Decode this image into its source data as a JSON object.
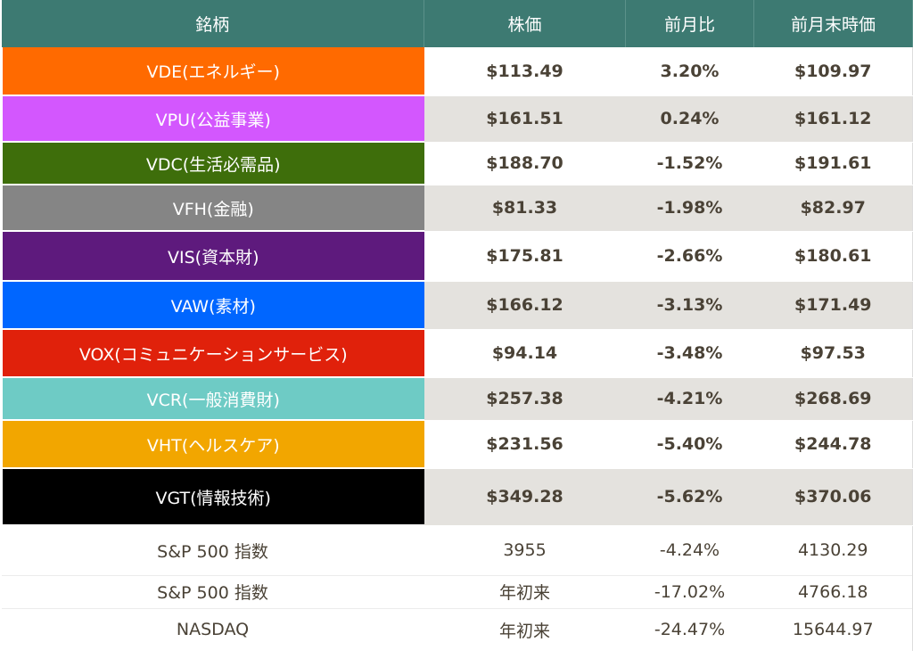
{
  "table": {
    "headers": [
      "銘柄",
      "株価",
      "前月比",
      "前月末時価"
    ],
    "rows": [
      {
        "name": "VDE(エネルギー)",
        "price": "$113.49",
        "change": "3.20%",
        "prev": "$109.97",
        "color": "#ff6a00"
      },
      {
        "name": "VPU(公益事業)",
        "price": "$161.51",
        "change": "0.24%",
        "prev": "$161.12",
        "color": "#d357fe"
      },
      {
        "name": "VDC(生活必需品)",
        "price": "$188.70",
        "change": "-1.52%",
        "prev": "$191.61",
        "color": "#3e6e0b"
      },
      {
        "name": "VFH(金融)",
        "price": "$81.33",
        "change": "-1.98%",
        "prev": "$82.97",
        "color": "#858585"
      },
      {
        "name": "VIS(資本財)",
        "price": "$175.81",
        "change": "-2.66%",
        "prev": "$180.61",
        "color": "#5e1a7d"
      },
      {
        "name": "VAW(素材)",
        "price": "$166.12",
        "change": "-3.13%",
        "prev": "$171.49",
        "color": "#0066ff"
      },
      {
        "name": "VOX(コミュニケーションサービス)",
        "price": "$94.14",
        "change": "-3.48%",
        "prev": "$97.53",
        "color": "#e0210b"
      },
      {
        "name": "VCR(一般消費財)",
        "price": "$257.38",
        "change": "-4.21%",
        "prev": "$268.69",
        "color": "#6ecbc5"
      },
      {
        "name": "VHT(ヘルスケア)",
        "price": "$231.56",
        "change": "-5.40%",
        "prev": "$244.78",
        "color": "#f2a600"
      },
      {
        "name": "VGT(情報技術)",
        "price": "$349.28",
        "change": "-5.62%",
        "prev": "$370.06",
        "color": "#000000"
      }
    ],
    "footer": [
      {
        "name": "S&P 500 指数",
        "price": "3955",
        "change": "-4.24%",
        "prev": "4130.29"
      },
      {
        "name": "S&P 500 指数",
        "price": "年初来",
        "change": "-17.02%",
        "prev": "4766.18"
      },
      {
        "name": "NASDAQ",
        "price": "年初来",
        "change": "-24.47%",
        "prev": "15644.97"
      }
    ]
  }
}
